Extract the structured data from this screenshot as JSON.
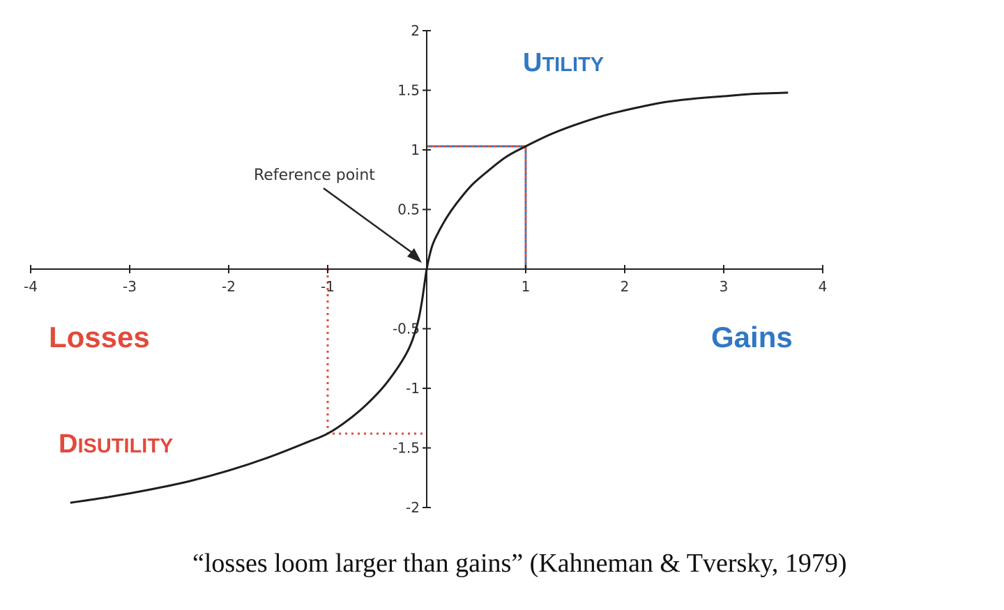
{
  "colors": {
    "axis": "#222222",
    "curve": "#1e1e1e",
    "gain": "#2f78c4",
    "loss": "#e24a3b",
    "annotation": "#333333",
    "caption": "#111111"
  },
  "chart_data": {
    "type": "line",
    "title": "",
    "xlabel": "",
    "ylabel": "",
    "xlim": [
      -4,
      4
    ],
    "ylim": [
      -2,
      2
    ],
    "grid": false,
    "x_ticks": [
      {
        "value": -4,
        "label": "-4"
      },
      {
        "value": -3,
        "label": "-3"
      },
      {
        "value": -2,
        "label": "-2"
      },
      {
        "value": -1,
        "label": "-1"
      },
      {
        "value": 1,
        "label": "1"
      },
      {
        "value": 2,
        "label": "2"
      },
      {
        "value": 3,
        "label": "3"
      },
      {
        "value": 4,
        "label": "4"
      }
    ],
    "y_ticks": [
      {
        "value": 2,
        "label": "2"
      },
      {
        "value": 1.5,
        "label": "1.5"
      },
      {
        "value": 1,
        "label": "1"
      },
      {
        "value": 0.5,
        "label": "0.5"
      },
      {
        "value": -0.5,
        "label": "-0.5"
      },
      {
        "value": -1,
        "label": "-1"
      },
      {
        "value": -1.5,
        "label": "-1.5"
      },
      {
        "value": -2,
        "label": "-2"
      }
    ],
    "series": [
      {
        "x": [
          -3.6,
          -3.2,
          -2.8,
          -2.4,
          -2.0,
          -1.6,
          -1.2,
          -1.0,
          -0.8,
          -0.6,
          -0.4,
          -0.2,
          -0.1,
          -0.05,
          0,
          0.05,
          0.1,
          0.2,
          0.3,
          0.45,
          0.6,
          0.8,
          1.0,
          1.25,
          1.5,
          1.8,
          2.1,
          2.4,
          2.7,
          3.0,
          3.3,
          3.65
        ],
        "y": [
          -1.96,
          -1.91,
          -1.85,
          -1.78,
          -1.69,
          -1.58,
          -1.45,
          -1.38,
          -1.27,
          -1.13,
          -0.95,
          -0.7,
          -0.48,
          -0.28,
          0,
          0.18,
          0.28,
          0.43,
          0.55,
          0.7,
          0.81,
          0.94,
          1.03,
          1.13,
          1.21,
          1.29,
          1.35,
          1.4,
          1.43,
          1.45,
          1.47,
          1.48
        ]
      }
    ],
    "guides": [
      {
        "name": "gain",
        "x": 1,
        "y": 1.03
      },
      {
        "name": "loss",
        "x": -1,
        "y": -1.38
      }
    ],
    "annotations": [
      {
        "text": "Reference point",
        "x": 0,
        "y": 0
      }
    ],
    "quadrant_labels": {
      "utility": {
        "first": "U",
        "rest": "TILITY"
      },
      "disutility": {
        "first": "D",
        "rest": "ISUTILITY"
      },
      "gains": "Gains",
      "losses": "Losses"
    }
  },
  "caption": "“losses loom larger than gains” (Kahneman & Tversky, 1979)"
}
